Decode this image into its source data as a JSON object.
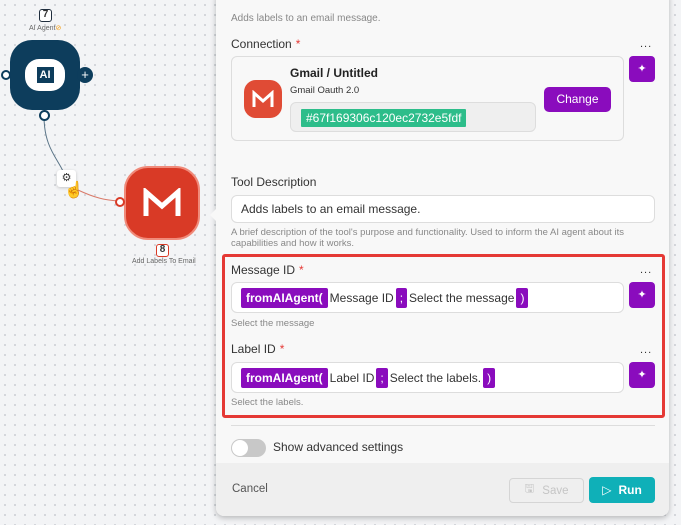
{
  "canvas": {
    "ai_node": {
      "number": "7",
      "label": "AI Agent",
      "icon_text": "AI",
      "color": "#0d3d5c"
    },
    "gmail_node": {
      "number": "8",
      "label": "Add Labels To Email",
      "color": "#d93a26"
    }
  },
  "panel": {
    "description": "Adds labels to an email message.",
    "connection": {
      "label": "Connection",
      "title": "Gmail / Untitled",
      "type": "Gmail Oauth 2.0",
      "id": "#67f169306c120ec2732e5fdf",
      "change_label": "Change"
    },
    "tool_description": {
      "label": "Tool Description",
      "value": "Adds labels to an email message.",
      "help": "A brief description of the tool's purpose and functionality. Used to inform the AI agent about its capabilities and how it works."
    },
    "message_id": {
      "label": "Message ID",
      "func": "fromAIAgent(",
      "arg1": "Message ID",
      "sep": ";",
      "arg2": "Select the message",
      "close": ")",
      "help": "Select the message"
    },
    "label_id": {
      "label": "Label ID",
      "func": "fromAIAgent(",
      "arg1": "Label ID",
      "sep": ";",
      "arg2": "Select the labels.",
      "close": ")",
      "help": "Select the labels."
    },
    "advanced": {
      "label": "Show advanced settings",
      "enabled": false
    },
    "footer": {
      "cancel": "Cancel",
      "save": "Save",
      "run": "Run"
    },
    "required_mark": "*",
    "more": "..."
  },
  "colors": {
    "accent": "#8a0cbd",
    "run": "#0fb0b8",
    "highlight": "#e53935",
    "id_badge": "#2dbd8a"
  }
}
